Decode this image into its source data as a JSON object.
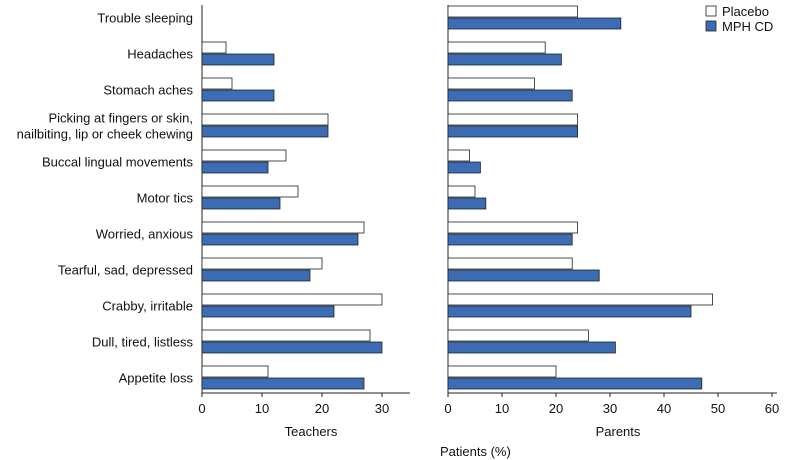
{
  "chart_data": {
    "type": "bar",
    "orientation": "horizontal",
    "categories": [
      [
        "Trouble sleeping"
      ],
      [
        "Headaches"
      ],
      [
        "Stomach aches"
      ],
      [
        "Picking at fingers or skin,",
        "nailbiting, lip or cheek chewing"
      ],
      [
        "Buccal lingual movements"
      ],
      [
        "Motor tics"
      ],
      [
        "Worried, anxious"
      ],
      [
        "Tearful, sad, depressed"
      ],
      [
        "Crabby, irritable"
      ],
      [
        "Dull, tired, listless"
      ],
      [
        "Appetite loss"
      ]
    ],
    "legend": {
      "position": "top-right",
      "entries": [
        {
          "name": "Placebo",
          "color": "#ffffff"
        },
        {
          "name": "MPH CD",
          "color": "#3b6cb4"
        }
      ]
    },
    "panels": [
      {
        "xlabel": "Teachers",
        "xlim": [
          0,
          35
        ],
        "xticks": [
          0,
          10,
          20,
          30
        ],
        "series": [
          {
            "name": "Placebo",
            "values": [
              null,
              4,
              5,
              21,
              14,
              16,
              27,
              20,
              30,
              28,
              11
            ]
          },
          {
            "name": "MPH CD",
            "values": [
              null,
              12,
              12,
              21,
              11,
              13,
              26,
              18,
              22,
              30,
              27
            ]
          }
        ]
      },
      {
        "xlabel": "Parents",
        "xlim": [
          0,
          60
        ],
        "xticks": [
          0,
          10,
          20,
          30,
          40,
          50,
          60
        ],
        "series": [
          {
            "name": "Placebo",
            "values": [
              24,
              18,
              16,
              24,
              4,
              5,
              24,
              23,
              49,
              26,
              20
            ]
          },
          {
            "name": "MPH CD",
            "values": [
              32,
              21,
              23,
              24,
              6,
              7,
              23,
              28,
              45,
              31,
              47
            ]
          }
        ]
      }
    ],
    "shared_xlabel": "Patients (%)"
  }
}
